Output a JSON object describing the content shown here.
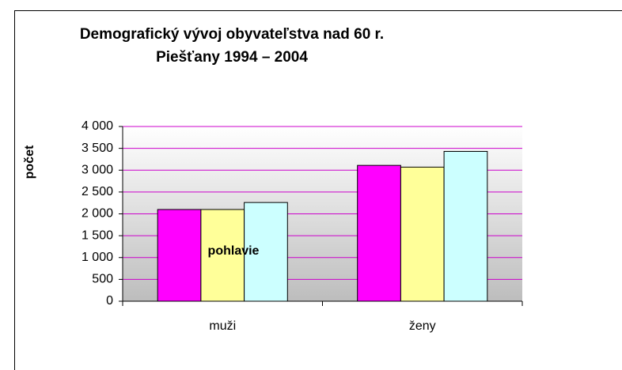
{
  "chart_data": {
    "type": "bar",
    "title": [
      "Demografický vývoj obyvateľstva nad 60 r.",
      "Piešťany 1994 – 2004"
    ],
    "y_label": "počet",
    "x_label": "pohlavie",
    "categories": [
      "muži",
      "ženy"
    ],
    "series": [
      {
        "color": "#ff00ff",
        "values": [
          2100,
          3110
        ]
      },
      {
        "color": "#ffff99",
        "values": [
          2100,
          3070
        ]
      },
      {
        "color": "#ccffff",
        "values": [
          2260,
          3430
        ]
      }
    ],
    "ylim": [
      0,
      4000
    ],
    "yticks": [
      0,
      500,
      {
        "value": 1000,
        "label": "1 000"
      },
      {
        "value": 1500,
        "label": "1 500"
      },
      {
        "value": 2000,
        "label": "2 000"
      },
      {
        "value": 2500,
        "label": "2 500"
      },
      {
        "value": 3000,
        "label": "3 000"
      },
      {
        "value": 3500,
        "label": "3 500"
      },
      {
        "value": 4000,
        "label": "4 000"
      }
    ],
    "grid": true,
    "grid_color": "#cc00cc"
  }
}
